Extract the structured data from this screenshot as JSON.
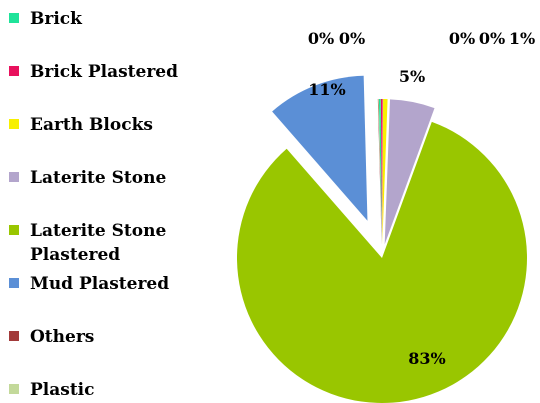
{
  "chart_data": {
    "type": "pie",
    "exploded": true,
    "legend_position": "left",
    "categories": [
      "Brick",
      "Brick Plastered",
      "Earth Blocks",
      "Laterite Stone",
      "Laterite Stone Plastered",
      "Mud Plastered",
      "Others",
      "Plastic"
    ],
    "legend_lines": [
      [
        "Brick"
      ],
      [
        "Brick Plastered"
      ],
      [
        "Earth Blocks"
      ],
      [
        "Laterite Stone"
      ],
      [
        "Laterite Stone",
        "Plastered"
      ],
      [
        "Mud Plastered"
      ],
      [
        "Others"
      ],
      [
        "Plastic"
      ]
    ],
    "values": [
      0.2,
      0.2,
      0.5,
      5,
      83,
      11,
      0.05,
      0.05
    ],
    "data_labels": [
      "0%",
      "0%",
      "1%",
      "5%",
      "83%",
      "11%",
      "0%",
      "0%"
    ],
    "colors": [
      "#1fe39a",
      "#e8115d",
      "#f7f000",
      "#b3a5cc",
      "#99c600",
      "#5b8fd6",
      "#a23a3a",
      "#c3d99a"
    ]
  }
}
